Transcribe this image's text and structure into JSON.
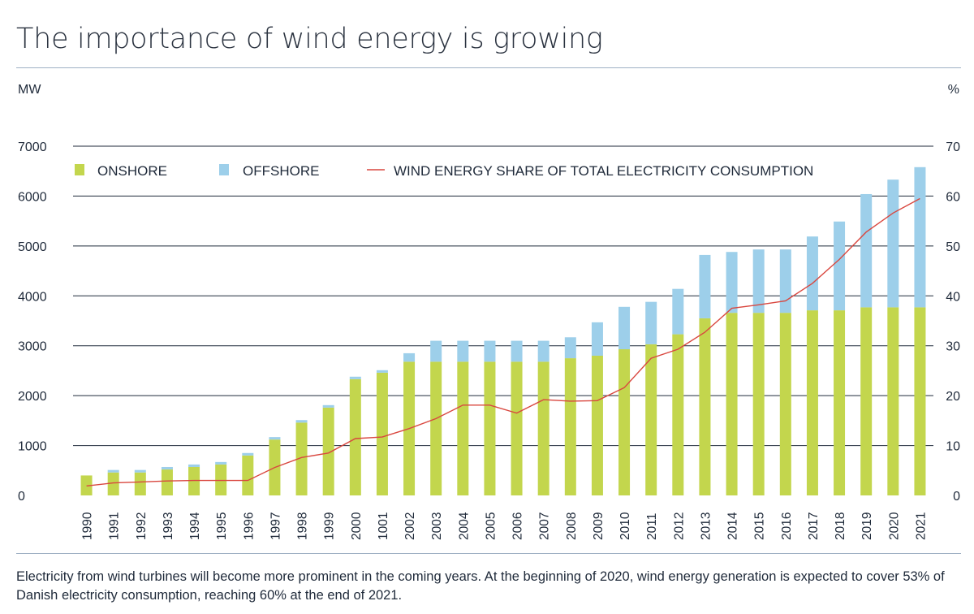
{
  "title": "The importance of wind energy is growing",
  "caption": "Electricity from wind turbines will become more prominent in the coming years. At the beginning of 2020, wind energy generation is expected to cover 53% of Danish electricity consumption, reaching 60% at the end of 2021.",
  "colors": {
    "onshore": "#c3d64d",
    "offshore": "#9dcfea",
    "share_line": "#d9473f",
    "grid": "#1f2a3a"
  },
  "chart_data": {
    "type": "bar",
    "stacked": true,
    "title": "The importance of wind energy is growing",
    "ylabel": "MW",
    "y2label": "%",
    "ylim": [
      0,
      7000
    ],
    "y2lim": [
      0,
      70
    ],
    "yticks": [
      0,
      1000,
      2000,
      3000,
      4000,
      5000,
      6000,
      7000
    ],
    "y2ticks": [
      0,
      10,
      20,
      30,
      40,
      50,
      60,
      70
    ],
    "grid": true,
    "legend_position": "top",
    "categories": [
      "1990",
      "1991",
      "1992",
      "1993",
      "1994",
      "1995",
      "1996",
      "1997",
      "1998",
      "1999",
      "2000",
      "1001",
      "2002",
      "2003",
      "2004",
      "2005",
      "2006",
      "2007",
      "2008",
      "2009",
      "2010",
      "2011",
      "2012",
      "2013",
      "2014",
      "2015",
      "2016",
      "2017",
      "2018",
      "2019",
      "2020",
      "2021"
    ],
    "series": [
      {
        "name": "ONSHORE",
        "kind": "bar",
        "axis": "left",
        "values": [
          400,
          460,
          460,
          520,
          570,
          620,
          800,
          1120,
          1460,
          1760,
          2330,
          2460,
          2680,
          2680,
          2680,
          2680,
          2680,
          2680,
          2750,
          2800,
          2930,
          3030,
          3230,
          3550,
          3660,
          3660,
          3660,
          3710,
          3710,
          3770,
          3770,
          3770
        ]
      },
      {
        "name": "OFFSHORE",
        "kind": "bar",
        "axis": "left",
        "values": [
          0,
          50,
          50,
          50,
          50,
          50,
          50,
          50,
          50,
          50,
          50,
          50,
          170,
          420,
          420,
          420,
          420,
          420,
          420,
          670,
          850,
          850,
          910,
          1270,
          1220,
          1270,
          1270,
          1480,
          1780,
          2270,
          2560,
          2810
        ]
      },
      {
        "name": "WIND ENERGY SHARE OF TOTAL ELECTRICITY CONSUMPTION",
        "kind": "line",
        "axis": "right",
        "values": [
          1.9,
          2.5,
          2.7,
          2.9,
          3,
          3,
          3,
          5.6,
          7.6,
          8.5,
          11.4,
          11.7,
          13.4,
          15.4,
          18.1,
          18.1,
          16.5,
          19.2,
          18.9,
          19,
          21.6,
          27.5,
          29.3,
          32.7,
          37.5,
          38.2,
          39,
          42.5,
          47.3,
          52.8,
          56.6,
          59.5
        ]
      }
    ]
  }
}
